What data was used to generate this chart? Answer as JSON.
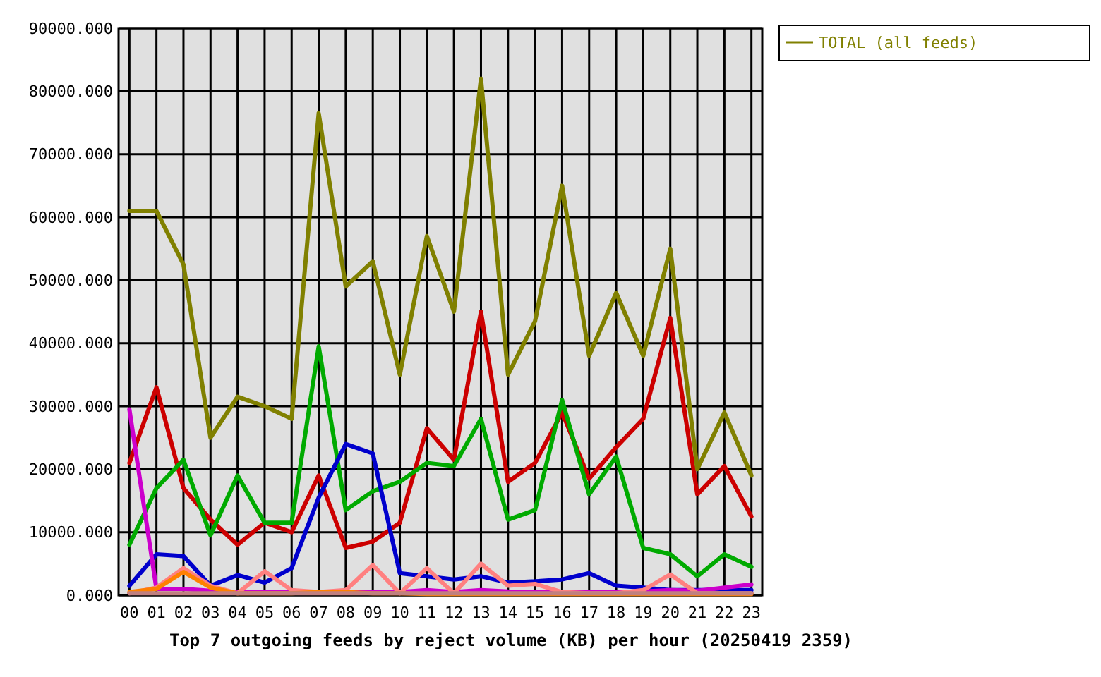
{
  "chart_data": {
    "type": "line",
    "title": "Top 7 outgoing feeds by reject volume (KB) per hour (20250419 2359)",
    "categories": [
      "00",
      "01",
      "02",
      "03",
      "04",
      "05",
      "06",
      "07",
      "08",
      "09",
      "10",
      "11",
      "12",
      "13",
      "14",
      "15",
      "16",
      "17",
      "18",
      "19",
      "20",
      "21",
      "22",
      "23"
    ],
    "series": [
      {
        "color": "#cc0000",
        "values": [
          21000,
          33000,
          17000,
          12000,
          8000,
          11500,
          10000,
          19000,
          7500,
          8500,
          11500,
          26500,
          21500,
          45000,
          18000,
          21000,
          29000,
          18500,
          23500,
          28000,
          44000,
          16000,
          20500,
          12500
        ]
      },
      {
        "color": "#00aa00",
        "values": [
          8000,
          17000,
          21500,
          9500,
          19000,
          11500,
          11500,
          39500,
          13500,
          16500,
          18000,
          21000,
          20500,
          28000,
          12000,
          13500,
          31000,
          16000,
          22000,
          7500,
          6500,
          3000,
          6500,
          4500
        ]
      },
      {
        "color": "#0000cc",
        "values": [
          1500,
          6500,
          6200,
          1500,
          3200,
          2000,
          4300,
          15500,
          24000,
          22500,
          3500,
          3000,
          2500,
          3000,
          2000,
          2200,
          2500,
          3500,
          1500,
          1200,
          800,
          800,
          800,
          800
        ]
      },
      {
        "color": "#cc00cc",
        "values": [
          29500,
          1000,
          1000,
          700,
          500,
          500,
          500,
          500,
          500,
          500,
          500,
          800,
          500,
          800,
          600,
          500,
          500,
          500,
          500,
          600,
          800,
          700,
          1200,
          1700
        ]
      },
      {
        "color": "#ff8080",
        "values": [
          300,
          1200,
          4300,
          1500,
          300,
          3800,
          800,
          500,
          800,
          4800,
          300,
          4300,
          300,
          5000,
          1500,
          1800,
          500,
          300,
          300,
          800,
          3300,
          300,
          300,
          300
        ]
      },
      {
        "color": "#ff8000",
        "values": [
          500,
          1000,
          3700,
          1200,
          300,
          300,
          300,
          500,
          500,
          300,
          300,
          200,
          200,
          200,
          200,
          200,
          200,
          200,
          200,
          200,
          200,
          200,
          200,
          200
        ]
      },
      {
        "color": "#c08080",
        "values": [
          300,
          300,
          300,
          300,
          300,
          300,
          300,
          300,
          300,
          300,
          300,
          300,
          300,
          300,
          300,
          300,
          300,
          300,
          300,
          300,
          300,
          300,
          300,
          300
        ]
      },
      {
        "name": "TOTAL (all feeds)",
        "color": "#808000",
        "values": [
          61000,
          61000,
          52500,
          25000,
          31500,
          30000,
          28000,
          76500,
          49000,
          53000,
          35000,
          57000,
          45000,
          82000,
          35000,
          43500,
          65000,
          38000,
          48000,
          38000,
          55000,
          20000,
          29000,
          19000
        ]
      }
    ],
    "ylim": [
      0,
      90000
    ],
    "yticks": [
      {
        "value": 0,
        "label": "0.000"
      },
      {
        "value": 10000,
        "label": "10000.000"
      },
      {
        "value": 20000,
        "label": "20000.000"
      },
      {
        "value": 30000,
        "label": "30000.000"
      },
      {
        "value": 40000,
        "label": "40000.000"
      },
      {
        "value": 50000,
        "label": "50000.000"
      },
      {
        "value": 60000,
        "label": "60000.000"
      },
      {
        "value": 70000,
        "label": "70000.000"
      },
      {
        "value": 80000,
        "label": "80000.000"
      },
      {
        "value": 90000,
        "label": "90000.000"
      }
    ],
    "grid": true,
    "legend": "top right",
    "marker": "none",
    "line_style": "solid"
  }
}
